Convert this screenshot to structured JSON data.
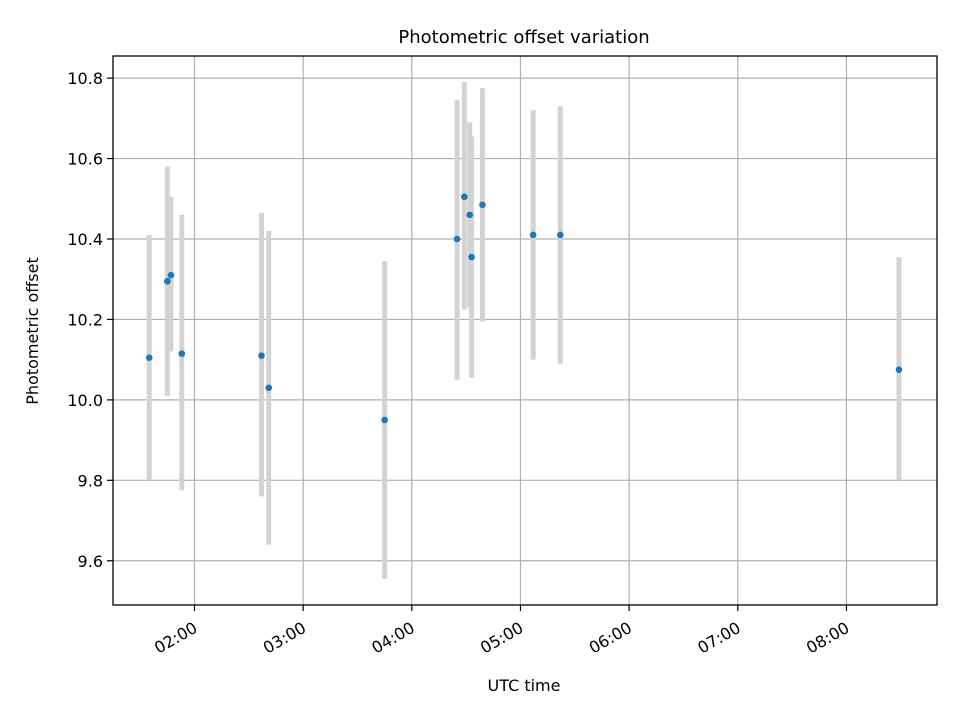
{
  "chart_data": {
    "type": "scatter",
    "title": "Photometric offset variation",
    "xlabel": "UTC time",
    "ylabel": "Photometric offset",
    "x_axis_kind": "time",
    "xlim": [
      "01:15",
      "08:50"
    ],
    "ylim": [
      9.49,
      10.855
    ],
    "x_ticks": [
      "02:00",
      "03:00",
      "04:00",
      "05:00",
      "06:00",
      "07:00",
      "08:00"
    ],
    "y_ticks": [
      9.6,
      9.8,
      10.0,
      10.2,
      10.4,
      10.6,
      10.8
    ],
    "y_tick_labels": [
      "9.6",
      "9.8",
      "10.0",
      "10.2",
      "10.4",
      "10.6",
      "10.8"
    ],
    "grid": true,
    "legend": "none",
    "colors": {
      "point": "#1f77b4",
      "errorbar": "#d3d3d3",
      "grid": "#b0b0b0",
      "axes": "#000000"
    },
    "points": [
      {
        "x": "01:35",
        "y": 10.105,
        "ylow": 9.8,
        "yhigh": 10.41
      },
      {
        "x": "01:45",
        "y": 10.295,
        "ylow": 10.01,
        "yhigh": 10.58
      },
      {
        "x": "01:47",
        "y": 10.31,
        "ylow": 10.12,
        "yhigh": 10.505
      },
      {
        "x": "01:53",
        "y": 10.115,
        "ylow": 9.775,
        "yhigh": 10.46
      },
      {
        "x": "02:37",
        "y": 10.11,
        "ylow": 9.76,
        "yhigh": 10.465
      },
      {
        "x": "02:41",
        "y": 10.03,
        "ylow": 9.64,
        "yhigh": 10.42
      },
      {
        "x": "03:45",
        "y": 9.95,
        "ylow": 9.555,
        "yhigh": 10.345
      },
      {
        "x": "04:25",
        "y": 10.4,
        "ylow": 10.05,
        "yhigh": 10.745
      },
      {
        "x": "04:29",
        "y": 10.505,
        "ylow": 10.225,
        "yhigh": 10.79
      },
      {
        "x": "04:32",
        "y": 10.46,
        "ylow": 10.23,
        "yhigh": 10.69
      },
      {
        "x": "04:33",
        "y": 10.355,
        "ylow": 10.055,
        "yhigh": 10.655
      },
      {
        "x": "04:39",
        "y": 10.485,
        "ylow": 10.195,
        "yhigh": 10.775
      },
      {
        "x": "05:07",
        "y": 10.41,
        "ylow": 10.1,
        "yhigh": 10.72
      },
      {
        "x": "05:22",
        "y": 10.41,
        "ylow": 10.09,
        "yhigh": 10.73
      },
      {
        "x": "08:29",
        "y": 10.075,
        "ylow": 9.8,
        "yhigh": 10.355
      }
    ]
  }
}
